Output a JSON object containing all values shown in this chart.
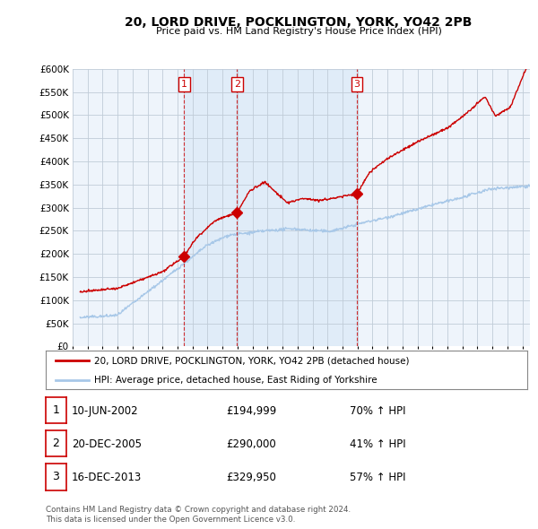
{
  "title": "20, LORD DRIVE, POCKLINGTON, YORK, YO42 2PB",
  "subtitle": "Price paid vs. HM Land Registry's House Price Index (HPI)",
  "legend_line1": "20, LORD DRIVE, POCKLINGTON, YORK, YO42 2PB (detached house)",
  "legend_line2": "HPI: Average price, detached house, East Riding of Yorkshire",
  "footer1": "Contains HM Land Registry data © Crown copyright and database right 2024.",
  "footer2": "This data is licensed under the Open Government Licence v3.0.",
  "transactions": [
    {
      "num": "1",
      "date": "10-JUN-2002",
      "price": "£194,999",
      "change": "70% ↑ HPI",
      "year": 2002.44
    },
    {
      "num": "2",
      "date": "20-DEC-2005",
      "price": "£290,000",
      "change": "41% ↑ HPI",
      "year": 2005.97
    },
    {
      "num": "3",
      "date": "16-DEC-2013",
      "price": "£329,950",
      "change": "57% ↑ HPI",
      "year": 2013.96
    }
  ],
  "sale_values": [
    194999,
    290000,
    329950
  ],
  "sale_years": [
    2002.44,
    2005.97,
    2013.96
  ],
  "hpi_color": "#a8c8e8",
  "price_color": "#cc0000",
  "shade_color": "#ddeeff",
  "background_color": "#ffffff",
  "grid_color": "#cccccc",
  "ylim": [
    0,
    600000
  ],
  "xlim_start": 1995.5,
  "xlim_end": 2025.5
}
